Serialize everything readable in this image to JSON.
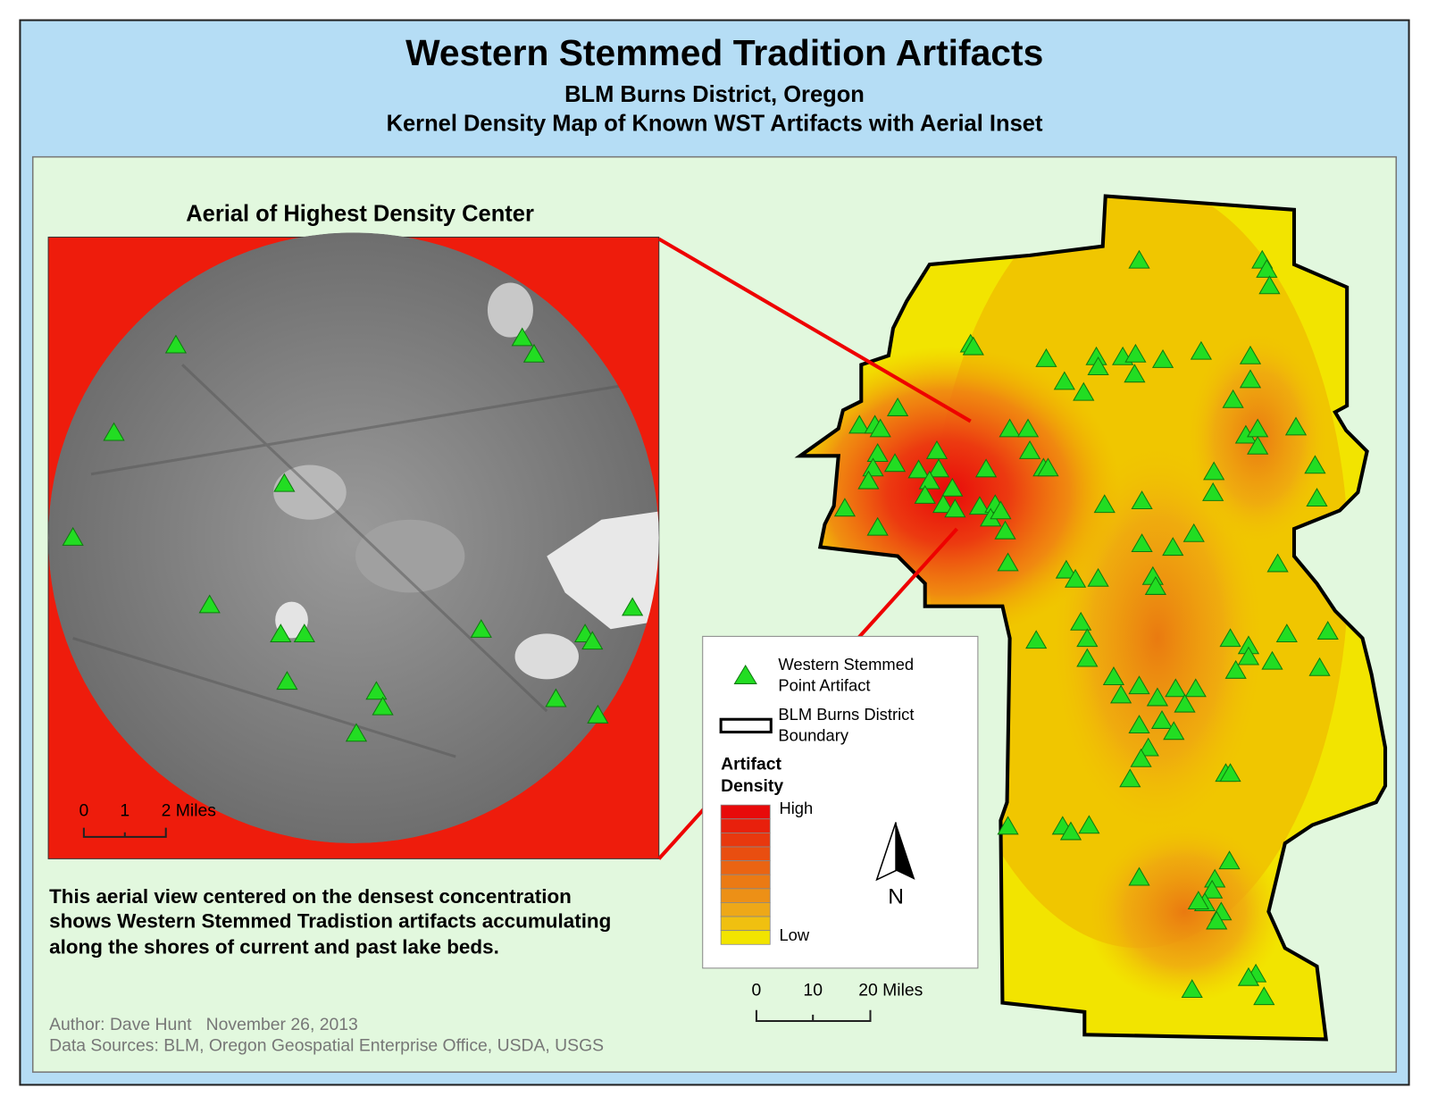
{
  "header": {
    "title": "Western Stemmed Tradition Artifacts",
    "subtitle": "BLM Burns District, Oregon",
    "subtitle2": "Kernel Density Map of Known WST Artifacts with Aerial Inset"
  },
  "inset": {
    "title": "Aerial of Highest Density Center",
    "scale": {
      "labels": [
        0,
        1,
        "2 Miles"
      ]
    }
  },
  "description": {
    "lines": [
      "This aerial view centered on the densest concentration",
      "shows Western Stemmed Tradistion artifacts accumulating",
      "along the shores of current and past lake beds."
    ]
  },
  "legend": {
    "artifact": [
      "Western Stemmed",
      "Point Artifact"
    ],
    "boundary": [
      "BLM Burns District",
      "Boundary"
    ],
    "density_title": [
      "Artifact",
      "Density"
    ],
    "high": "High",
    "low": "Low"
  },
  "north": "N",
  "scale": {
    "labels": [
      0,
      10,
      "20 Miles"
    ]
  },
  "footer": {
    "author": "Author: Dave Hunt   November 26, 2013",
    "sources": "Data Sources: BLM, Oregon Geospatial Enterprise Office, USDA, USGS"
  }
}
